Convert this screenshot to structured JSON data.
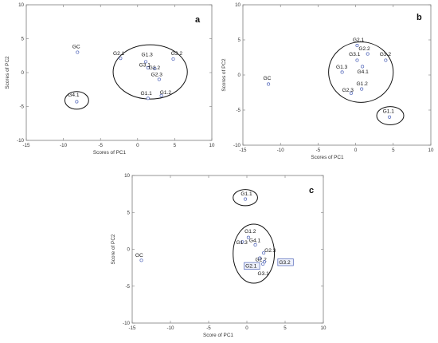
{
  "chart_data": [
    {
      "type": "scatter",
      "panel": "a",
      "xlabel": "Scores of PC1",
      "ylabel": "Scores of PC2",
      "xlim": [
        -15,
        10
      ],
      "ylim": [
        -10,
        10
      ],
      "xticks": [
        -15,
        -10,
        -5,
        0,
        5,
        10
      ],
      "yticks": [
        -10,
        -5,
        0,
        5,
        10
      ],
      "points": [
        {
          "label": "GC",
          "x": -8.1,
          "y": 3.0,
          "lx": -8.8,
          "ly": 3.6
        },
        {
          "label": "G2.1",
          "x": -2.3,
          "y": 2.1,
          "lx": -3.3,
          "ly": 2.6
        },
        {
          "label": "G1.3",
          "x": 1.1,
          "y": 1.6,
          "lx": 0.5,
          "ly": 2.4
        },
        {
          "label": "G3.1",
          "x": 1.4,
          "y": 0.7,
          "lx": 0.2,
          "ly": 0.9
        },
        {
          "label": "G2.2",
          "x": 2.3,
          "y": 0.6,
          "lx": 1.5,
          "ly": 0.5
        },
        {
          "label": "G2.3",
          "x": 2.9,
          "y": -1.0,
          "lx": 1.8,
          "ly": -0.5
        },
        {
          "label": "G3.2",
          "x": 4.8,
          "y": 2.0,
          "lx": 4.5,
          "ly": 2.6
        },
        {
          "label": "G1.1",
          "x": 1.4,
          "y": -3.8,
          "lx": 0.4,
          "ly": -3.3
        },
        {
          "label": "G1.2",
          "x": 3.2,
          "y": -3.4,
          "lx": 3.0,
          "ly": -3.2
        },
        {
          "label": "G4.1",
          "x": -8.2,
          "y": -4.3,
          "lx": -9.4,
          "ly": -3.5
        }
      ],
      "ellipses": [
        {
          "cx": 1.7,
          "cy": 0.1,
          "rx": 5.0,
          "ry": 4.0
        },
        {
          "cx": -8.2,
          "cy": -4.1,
          "rx": 1.6,
          "ry": 1.3
        }
      ]
    },
    {
      "type": "scatter",
      "panel": "b",
      "xlabel": "Scores of PC1",
      "ylabel": "Scores of PC2",
      "xlim": [
        -15,
        10
      ],
      "ylim": [
        -10,
        10
      ],
      "xticks": [
        -15,
        -10,
        -5,
        0,
        5,
        10
      ],
      "yticks": [
        -10,
        -5,
        0,
        5,
        10
      ],
      "points": [
        {
          "label": "GC",
          "x": -11.6,
          "y": -1.3,
          "lx": -12.3,
          "ly": -0.7
        },
        {
          "label": "G2.1",
          "x": 0.2,
          "y": 4.2,
          "lx": -0.4,
          "ly": 4.8
        },
        {
          "label": "G2.2",
          "x": 1.6,
          "y": 3.0,
          "lx": 0.4,
          "ly": 3.5
        },
        {
          "label": "G3.1",
          "x": 0.2,
          "y": 2.1,
          "lx": -0.9,
          "ly": 2.7
        },
        {
          "label": "G3.2",
          "x": 4.0,
          "y": 2.1,
          "lx": 3.2,
          "ly": 2.7
        },
        {
          "label": "G1.3",
          "x": -1.8,
          "y": 0.4,
          "lx": -2.6,
          "ly": 0.9
        },
        {
          "label": "G4.1",
          "x": 0.9,
          "y": 1.2,
          "lx": 0.2,
          "ly": 0.2
        },
        {
          "label": "G1.2",
          "x": 0.8,
          "y": -2.0,
          "lx": 0.1,
          "ly": -1.5
        },
        {
          "label": "G2.3",
          "x": -0.6,
          "y": -2.6,
          "lx": -1.8,
          "ly": -2.4
        },
        {
          "label": "G1.1",
          "x": 4.5,
          "y": -6.0,
          "lx": 3.6,
          "ly": -5.4
        }
      ],
      "ellipses": [
        {
          "cx": 0.7,
          "cy": 0.4,
          "rx": 4.3,
          "ry": 4.3
        },
        {
          "cx": 4.6,
          "cy": -5.8,
          "rx": 1.8,
          "ry": 1.3
        }
      ]
    },
    {
      "type": "scatter",
      "panel": "c",
      "xlabel": "Score of PC1",
      "ylabel": "Score of PC2",
      "xlim": [
        -15,
        10
      ],
      "ylim": [
        -10,
        10
      ],
      "xticks": [
        -15,
        -10,
        -5,
        0,
        5,
        10
      ],
      "yticks": [
        -10,
        -5,
        0,
        5,
        10
      ],
      "points": [
        {
          "label": "GC",
          "x": -13.8,
          "y": -1.5,
          "lx": -14.6,
          "ly": -1.0
        },
        {
          "label": "G1.1",
          "x": -0.2,
          "y": 6.8,
          "lx": -0.8,
          "ly": 7.3
        },
        {
          "label": "G1.2",
          "x": 0.2,
          "y": 1.6,
          "lx": -0.3,
          "ly": 2.2
        },
        {
          "label": "G1.3",
          "x": -0.6,
          "y": 1.0,
          "lx": -1.4,
          "ly": 0.7
        },
        {
          "label": "G4.1",
          "x": 1.1,
          "y": 0.6,
          "lx": 0.3,
          "ly": 1.0
        },
        {
          "label": "G2.3",
          "x": 2.2,
          "y": -0.5,
          "lx": 2.3,
          "ly": -0.4
        },
        {
          "label": "G2.2",
          "x": 1.7,
          "y": -1.2,
          "lx": 1.1,
          "ly": -1.6
        },
        {
          "label": "G2.1",
          "x": 1.2,
          "y": -2.2,
          "lx": -0.2,
          "ly": -2.5,
          "boxed": true
        },
        {
          "label": "G3.1",
          "x": 2.1,
          "y": -2.0,
          "lx": 1.4,
          "ly": -3.5
        },
        {
          "label": "G3.2",
          "x": 2.3,
          "y": -1.7,
          "lx": 4.2,
          "ly": -2.0,
          "boxed": true
        }
      ],
      "ellipses": [
        {
          "cx": 0.9,
          "cy": -0.6,
          "rx": 2.7,
          "ry": 4.0
        },
        {
          "cx": -0.2,
          "cy": 7.0,
          "rx": 1.6,
          "ry": 1.1
        }
      ]
    }
  ]
}
